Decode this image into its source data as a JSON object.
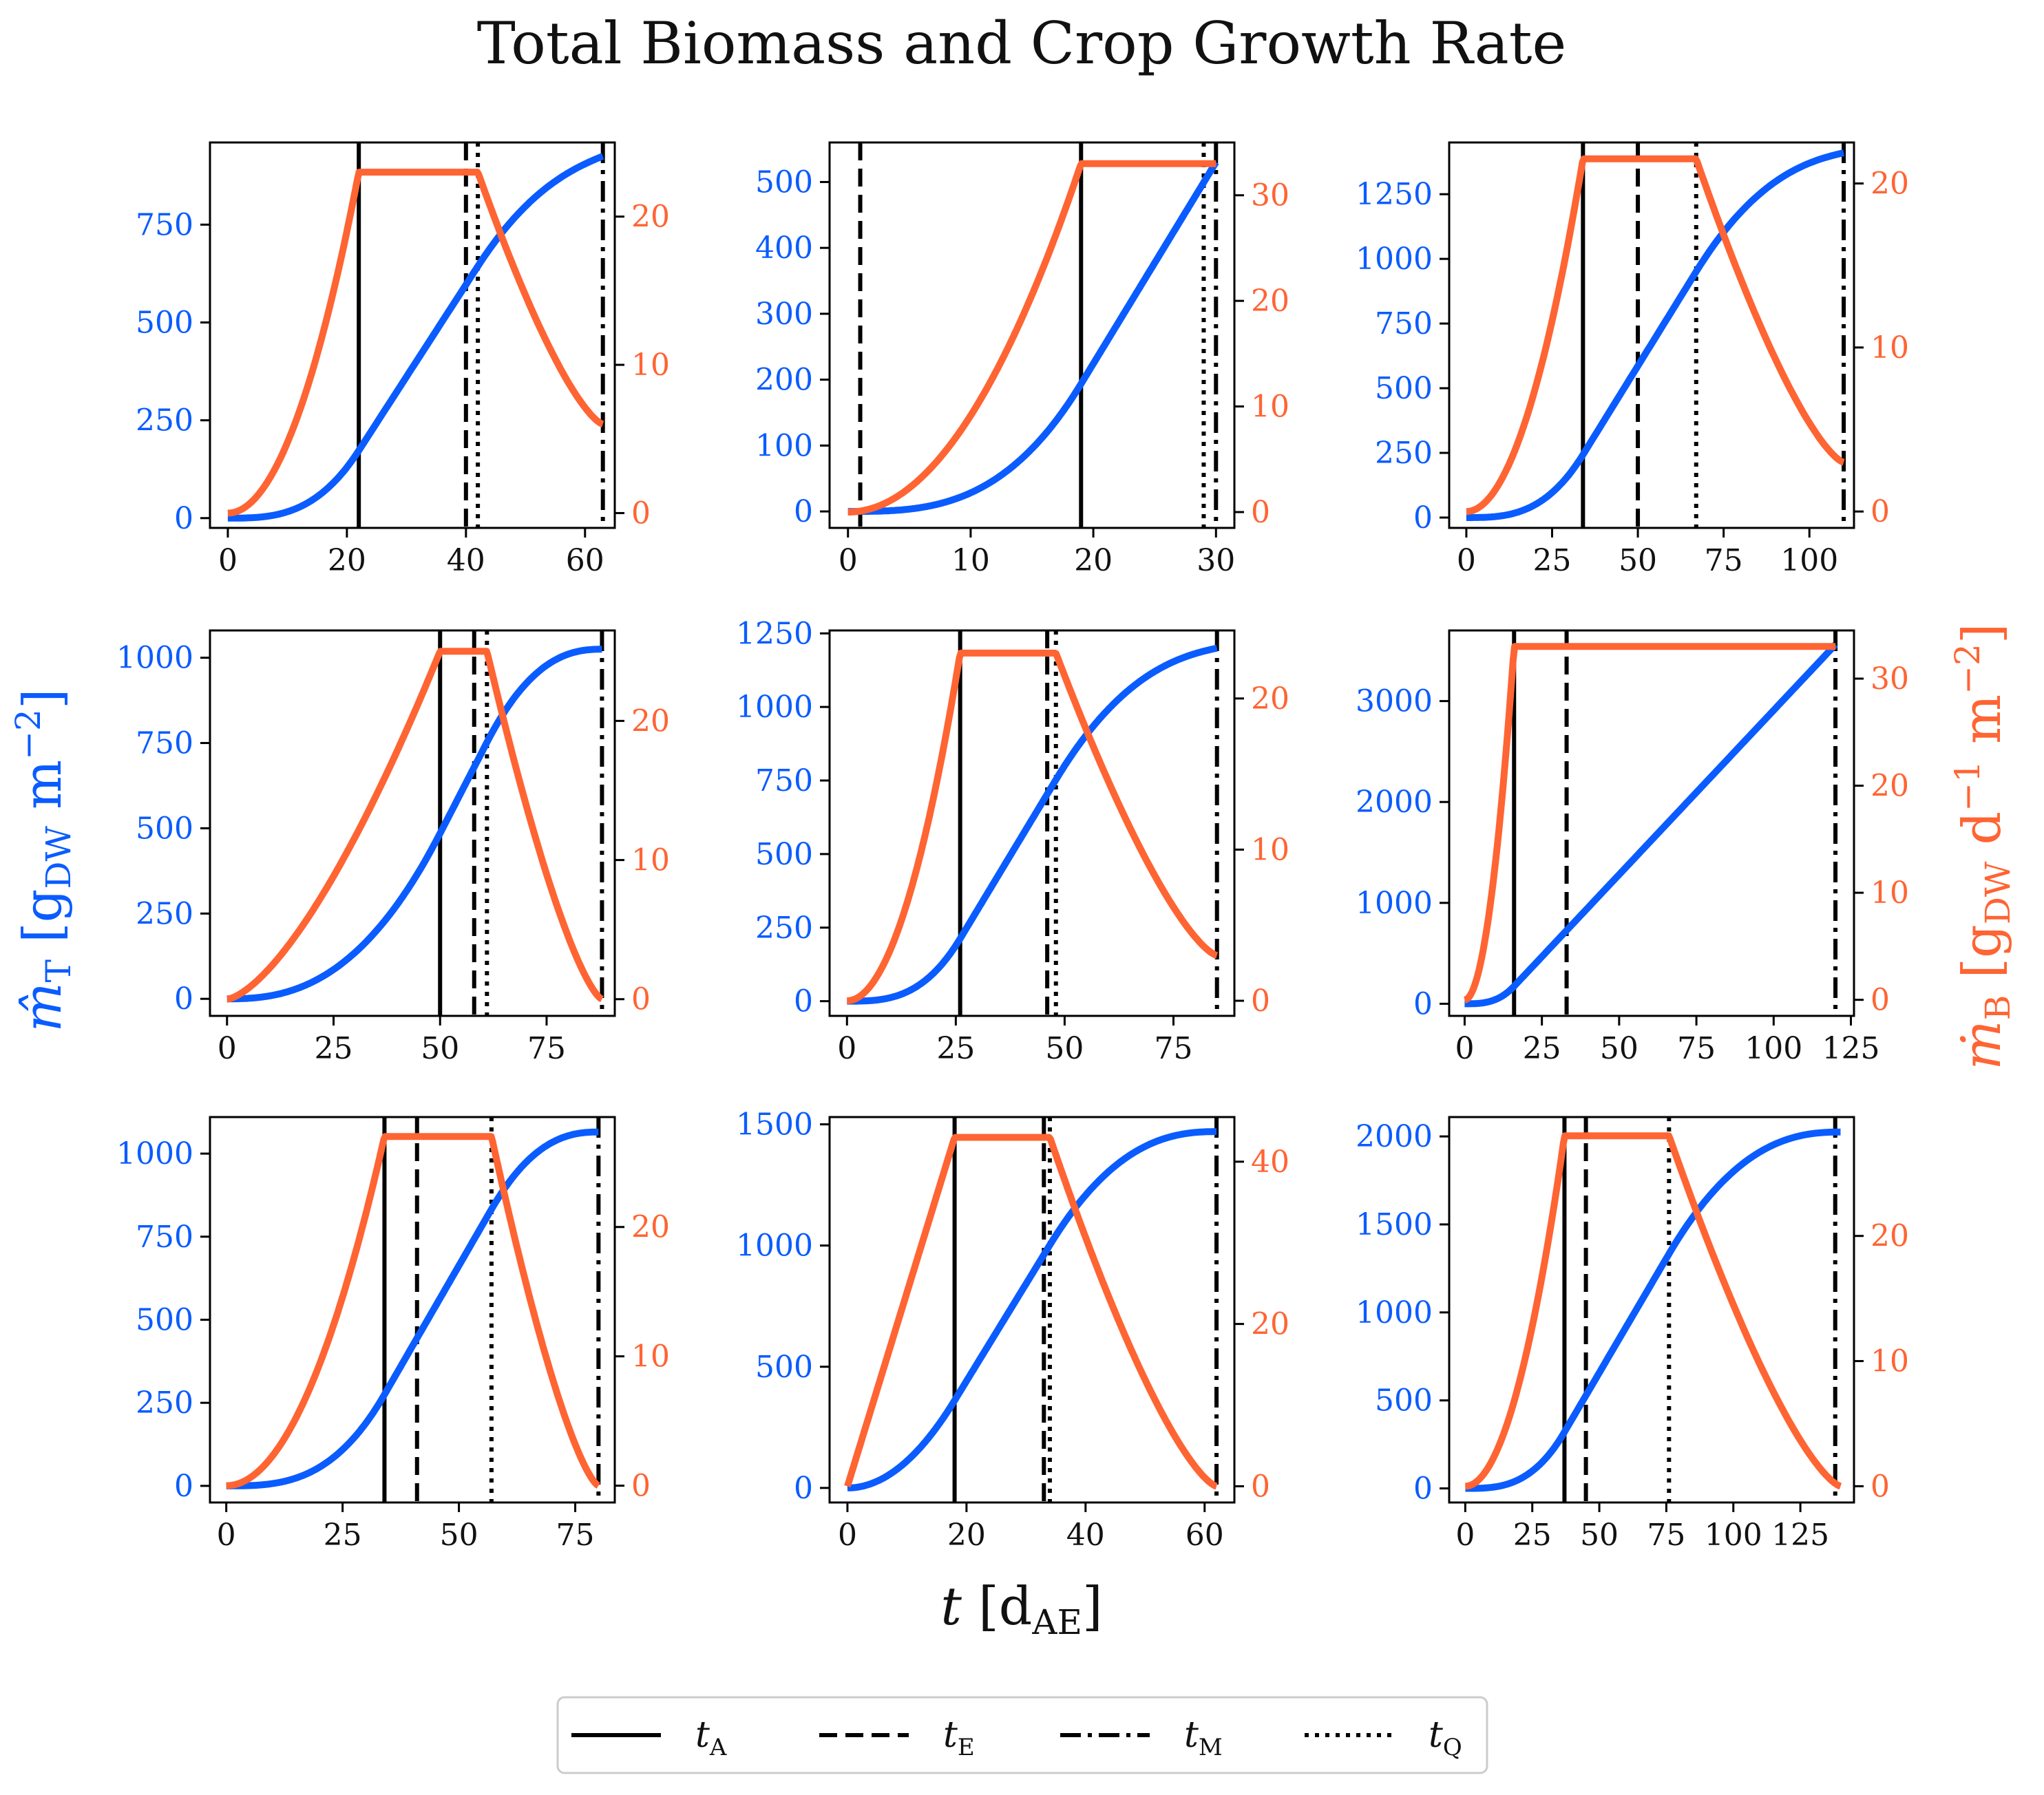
{
  "chart_data": {
    "type": "line",
    "title": "Total Biomass and Crop Growth Rate",
    "xlabel": "t [d_AE]",
    "ylabel_left": "m̂_T [g_DW m⁻²]",
    "ylabel_right": "ṁ_B [g_DW d⁻¹ m⁻²]",
    "colors": {
      "total_biomass": "#0a5cff",
      "growth_rate": "#ff6433",
      "markers": "#000000"
    },
    "grid": false,
    "legend_placement": "bottom-center",
    "legend": [
      {
        "label": "t_A",
        "main": "t",
        "sub": "A",
        "style": "solid"
      },
      {
        "label": "t_E",
        "main": "t",
        "sub": "E",
        "style": "dashed"
      },
      {
        "label": "t_M",
        "main": "t",
        "sub": "M",
        "style": "dashdot"
      },
      {
        "label": "t_Q",
        "main": "t",
        "sub": "Q",
        "style": "dotted"
      }
    ],
    "panels": [
      {
        "xmax": 63,
        "tA": 22,
        "tE": 40,
        "tQ": 42,
        "tM": 63,
        "rmax": 23,
        "rend": 6,
        "p": 2,
        "mfinal": 925,
        "xlim": [
          -3,
          65
        ],
        "ylim_left": [
          -25,
          960
        ],
        "ylim_right": [
          -1,
          25
        ],
        "xticks": [
          0,
          20,
          40,
          60
        ],
        "yticks_left": [
          0,
          250,
          500,
          750
        ],
        "yticks_right": [
          0,
          10,
          20
        ]
      },
      {
        "xmax": 30,
        "tA": 19,
        "tE": 1,
        "tQ": 29,
        "tM": 30,
        "rmax": 33,
        "rend": 33,
        "p": 2,
        "mfinal": 530,
        "xlim": [
          -1.5,
          31.5
        ],
        "ylim_left": [
          -25,
          560
        ],
        "ylim_right": [
          -1.5,
          35
        ],
        "xticks": [
          0,
          10,
          20,
          30
        ],
        "yticks_left": [
          0,
          100,
          200,
          300,
          400,
          500
        ],
        "yticks_right": [
          0,
          10,
          20,
          30
        ]
      },
      {
        "xmax": 110,
        "tA": 34,
        "tE": 50,
        "tQ": 67,
        "tM": 110,
        "rmax": 21.5,
        "rend": 3,
        "p": 2,
        "mfinal": 1410,
        "xlim": [
          -5,
          113
        ],
        "ylim_left": [
          -40,
          1450
        ],
        "ylim_right": [
          -1,
          22.5
        ],
        "xticks": [
          0,
          25,
          50,
          75,
          100
        ],
        "yticks_left": [
          0,
          250,
          500,
          750,
          1000,
          1250
        ],
        "yticks_right": [
          0,
          10,
          20
        ]
      },
      {
        "xmax": 88,
        "tA": 50,
        "tE": 58,
        "tQ": 61,
        "tM": 88,
        "rmax": 25,
        "rend": 0,
        "p": 1.5,
        "mfinal": 1025,
        "xlim": [
          -4,
          91
        ],
        "ylim_left": [
          -50,
          1080
        ],
        "ylim_right": [
          -1.2,
          26.5
        ],
        "xticks": [
          0,
          25,
          50,
          75
        ],
        "yticks_left": [
          0,
          250,
          500,
          750,
          1000
        ],
        "yticks_right": [
          0,
          10,
          20
        ]
      },
      {
        "xmax": 85,
        "tA": 26,
        "tE": 46,
        "tQ": 48,
        "tM": 85,
        "rmax": 23,
        "rend": 3,
        "p": 2,
        "mfinal": 1200,
        "xlim": [
          -4,
          89
        ],
        "ylim_left": [
          -50,
          1260
        ],
        "ylim_right": [
          -1,
          24.5
        ],
        "xticks": [
          0,
          25,
          50,
          75
        ],
        "yticks_left": [
          0,
          250,
          500,
          750,
          1000,
          1250
        ],
        "yticks_right": [
          0,
          10,
          20
        ]
      },
      {
        "xmax": 120,
        "tA": 16,
        "tE": 33,
        "tQ": null,
        "tM": 120,
        "rmax": 33,
        "rend": 33,
        "p": 2,
        "mfinal": 3560,
        "xlim": [
          -5,
          126
        ],
        "ylim_left": [
          -120,
          3700
        ],
        "ylim_right": [
          -1.5,
          34.5
        ],
        "xticks": [
          0,
          25,
          50,
          75,
          100,
          125
        ],
        "yticks_left": [
          0,
          1000,
          2000,
          3000
        ],
        "yticks_right": [
          0,
          10,
          20,
          30
        ]
      },
      {
        "xmax": 80,
        "tA": 34,
        "tE": 41,
        "tQ": 57,
        "tM": 80,
        "rmax": 27,
        "rend": 0,
        "p": 2,
        "mfinal": 1065,
        "xlim": [
          -3.5,
          83.5
        ],
        "ylim_left": [
          -50,
          1110
        ],
        "ylim_right": [
          -1.3,
          28.5
        ],
        "xticks": [
          0,
          25,
          50,
          75
        ],
        "yticks_left": [
          0,
          250,
          500,
          750,
          1000
        ],
        "yticks_right": [
          0,
          10,
          20
        ]
      },
      {
        "xmax": 62,
        "tA": 18,
        "tE": 33,
        "tQ": 34,
        "tM": 62,
        "rmax": 43,
        "rend": 0,
        "p": 1,
        "mfinal": 1470,
        "xlim": [
          -3,
          65
        ],
        "ylim_left": [
          -60,
          1530
        ],
        "ylim_right": [
          -2,
          45.5
        ],
        "xticks": [
          0,
          20,
          40,
          60
        ],
        "yticks_left": [
          0,
          500,
          1000,
          1500
        ],
        "yticks_right": [
          0,
          20,
          40
        ]
      },
      {
        "xmax": 140,
        "tA": 37,
        "tE": 45,
        "tQ": 76,
        "tM": 138,
        "rmax": 28,
        "rend": 0,
        "p": 2,
        "mfinal": 2025,
        "xlim": [
          -6,
          145
        ],
        "ylim_left": [
          -80,
          2110
        ],
        "ylim_right": [
          -1.3,
          29.5
        ],
        "xticks": [
          0,
          25,
          50,
          75,
          100,
          125
        ],
        "yticks_left": [
          0,
          500,
          1000,
          1500,
          2000
        ],
        "yticks_right": [
          0,
          10,
          20
        ]
      }
    ]
  }
}
